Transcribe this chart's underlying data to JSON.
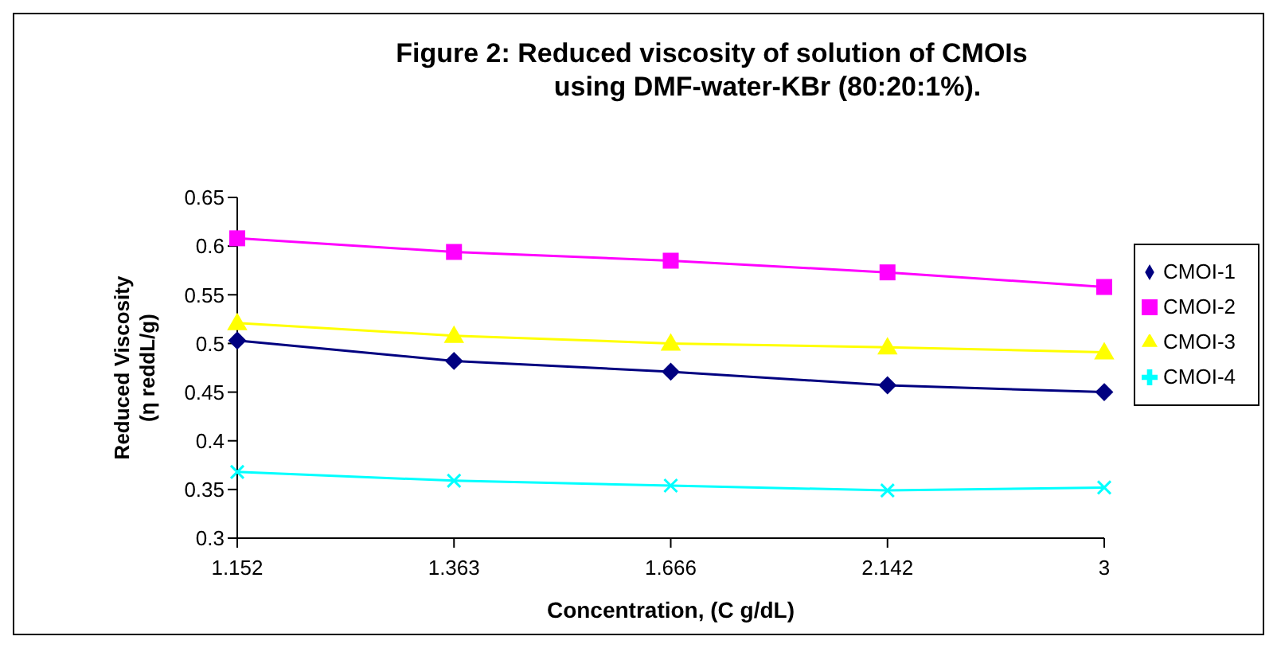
{
  "chart_data": {
    "type": "line",
    "title": "Figure 2: Reduced viscosity of solution of CMOIs\nusing DMF-water-KBr (80:20:1%).",
    "xlabel": "Concentration, (C g/dL)",
    "ylabel": "Reduced Viscosity\n(η reddL/g)",
    "categories": [
      "1.152",
      "1.363",
      "1.666",
      "2.142",
      "3"
    ],
    "series": [
      {
        "name": "CMOI-1",
        "color": "#000080",
        "marker": "diamond",
        "values": [
          0.503,
          0.482,
          0.471,
          0.457,
          0.45
        ]
      },
      {
        "name": "CMOI-2",
        "color": "#ff00ff",
        "marker": "square",
        "values": [
          0.608,
          0.594,
          0.585,
          0.573,
          0.558
        ]
      },
      {
        "name": "CMOI-3",
        "color": "#ffff00",
        "marker": "triangle",
        "values": [
          0.521,
          0.508,
          0.5,
          0.496,
          0.491
        ]
      },
      {
        "name": "CMOI-4",
        "color": "#00ffff",
        "marker": "cross",
        "values": [
          0.368,
          0.359,
          0.354,
          0.349,
          0.352
        ]
      }
    ],
    "ylim": [
      0.3,
      0.65
    ],
    "yticks": [
      0.3,
      0.35,
      0.4,
      0.45,
      0.5,
      0.55,
      0.6,
      0.65
    ],
    "grid": false,
    "legend": "right"
  }
}
